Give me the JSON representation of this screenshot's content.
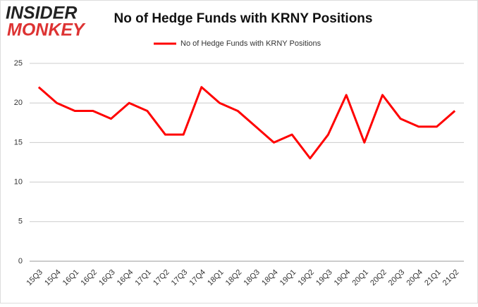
{
  "logo": {
    "top": "INSIDER",
    "bottom": "MONKEY"
  },
  "chart_data": {
    "type": "line",
    "title": "No of Hedge Funds with KRNY Positions",
    "categories": [
      "15Q3",
      "15Q4",
      "16Q1",
      "16Q2",
      "16Q3",
      "16Q4",
      "17Q1",
      "17Q2",
      "17Q3",
      "17Q4",
      "18Q1",
      "18Q2",
      "18Q3",
      "18Q4",
      "19Q1",
      "19Q2",
      "19Q3",
      "19Q4",
      "20Q1",
      "20Q2",
      "20Q3",
      "20Q4",
      "21Q1",
      "21Q2"
    ],
    "series": [
      {
        "name": "No of Hedge Funds with KRNY Positions",
        "color": "#ff0000",
        "values": [
          22,
          20,
          19,
          19,
          18,
          20,
          19,
          16,
          16,
          22,
          20,
          19,
          17,
          15,
          16,
          13,
          16,
          21,
          15,
          21,
          18,
          17,
          17,
          19
        ]
      }
    ],
    "ylim": [
      0,
      25
    ],
    "yticks": [
      0,
      5,
      10,
      15,
      20,
      25
    ],
    "grid": true,
    "legend": "top"
  }
}
